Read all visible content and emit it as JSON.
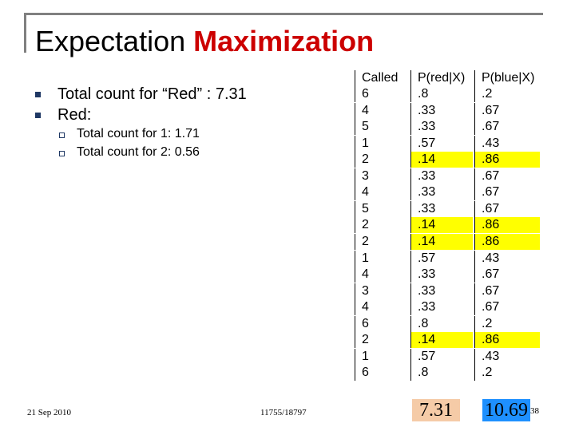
{
  "title": {
    "plain": "Expectation ",
    "accent": "Maximization"
  },
  "bullets": [
    "Total count for “Red” : 7.31",
    "Red:"
  ],
  "sub_bullets": [
    "Total count for 1:  1.71",
    "Total count for 2:  0.56"
  ],
  "table": {
    "headers": [
      "Called",
      "P(red|X)",
      "P(blue|X)"
    ],
    "rows": [
      [
        "6",
        ".8",
        ".2"
      ],
      [
        "4",
        ".33",
        ".67"
      ],
      [
        "5",
        ".33",
        ".67"
      ],
      [
        "1",
        ".57",
        ".43"
      ],
      [
        "2",
        ".14",
        ".86"
      ],
      [
        "3",
        ".33",
        ".67"
      ],
      [
        "4",
        ".33",
        ".67"
      ],
      [
        "5",
        ".33",
        ".67"
      ],
      [
        "2",
        ".14",
        ".86"
      ],
      [
        "2",
        ".14",
        ".86"
      ],
      [
        "1",
        ".57",
        ".43"
      ],
      [
        "4",
        ".33",
        ".67"
      ],
      [
        "3",
        ".33",
        ".67"
      ],
      [
        "4",
        ".33",
        ".67"
      ],
      [
        "6",
        ".8",
        ".2"
      ],
      [
        "2",
        ".14",
        ".86"
      ],
      [
        "1",
        ".57",
        ".43"
      ],
      [
        "6",
        ".8",
        ".2"
      ]
    ],
    "highlighted_value": "2",
    "highlight_color": "#ffff00"
  },
  "totals": {
    "red": "7.31",
    "blue": "10.69"
  },
  "footer": {
    "date": "21 Sep 2010",
    "course": "11755/18797",
    "page": "38"
  },
  "colors": {
    "accent": "#cc0000",
    "bullet": "#1f3864",
    "red_total_bg": "#f5cba7",
    "blue_total_bg": "#1e90ff"
  }
}
